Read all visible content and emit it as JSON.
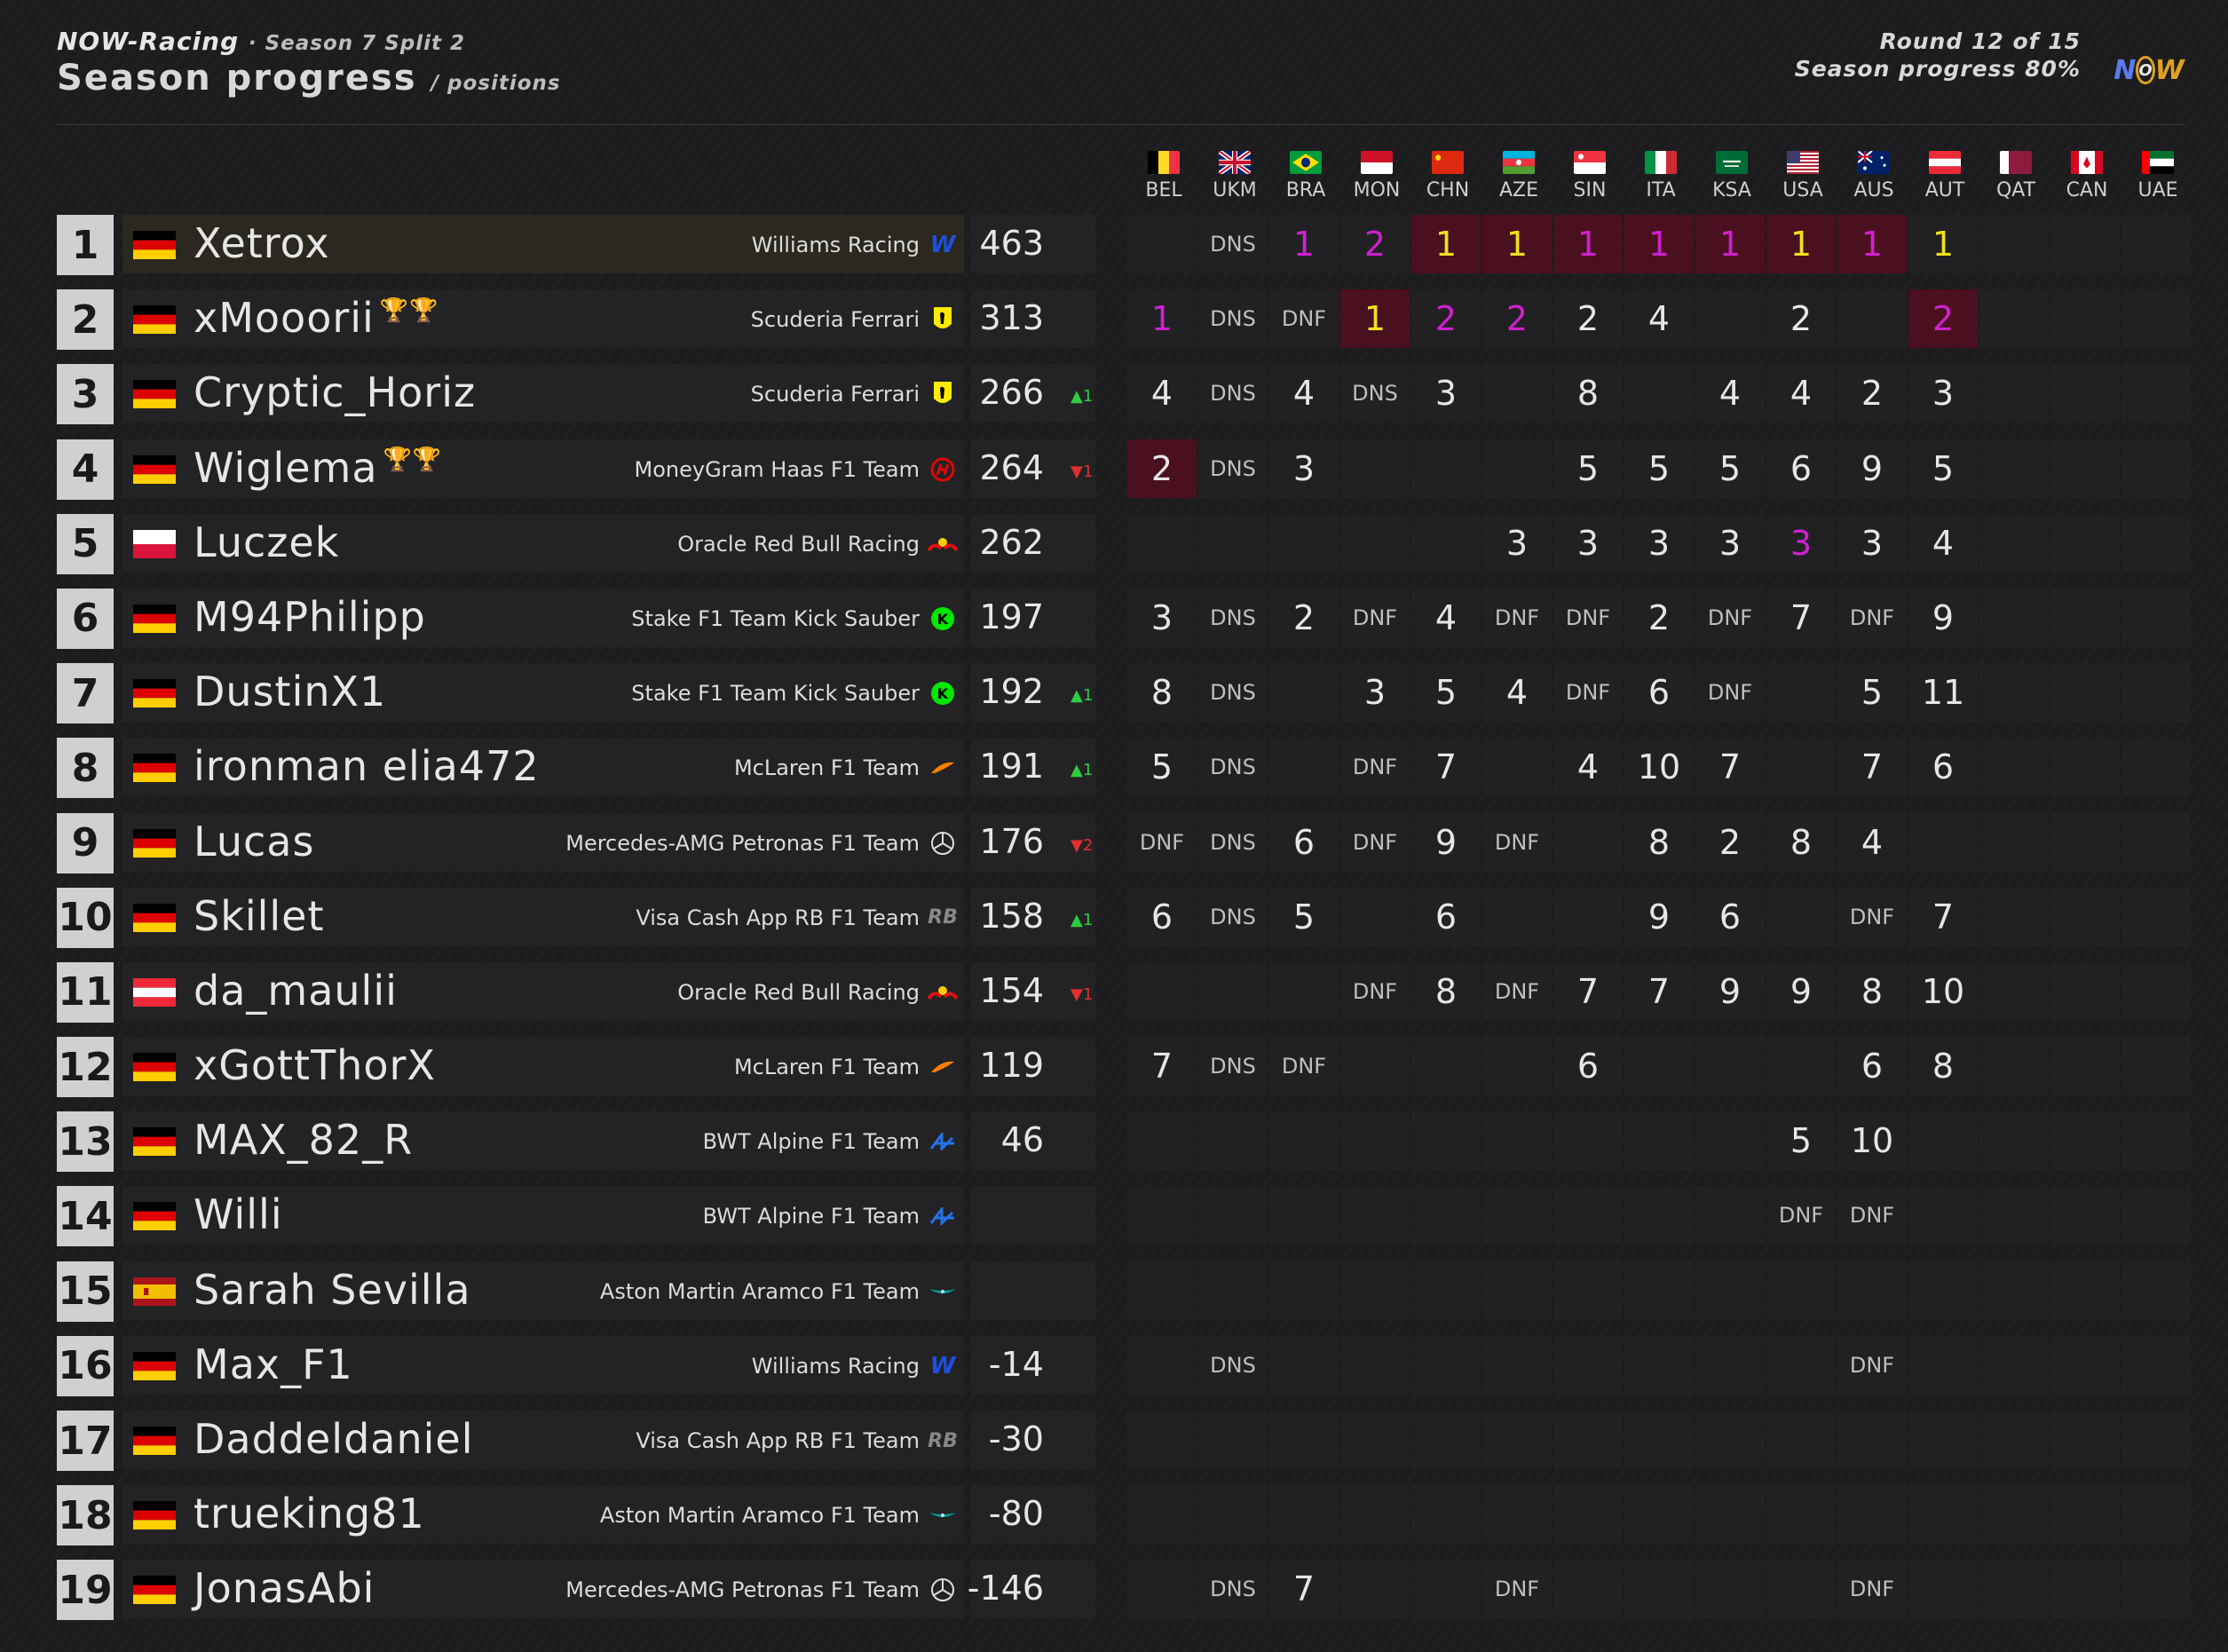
{
  "header": {
    "org": "NOW-Racing",
    "season": "· Season 7 Split 2",
    "title": "Season progress",
    "subtitle": "/ positions",
    "round": "Round 12 of 15",
    "progress": "Season progress 80%",
    "logo_letters": [
      "N",
      "O",
      "W"
    ]
  },
  "races": [
    {
      "code": "BEL",
      "flag": "be"
    },
    {
      "code": "UKM",
      "flag": "gb"
    },
    {
      "code": "BRA",
      "flag": "br"
    },
    {
      "code": "MON",
      "flag": "mc"
    },
    {
      "code": "CHN",
      "flag": "cn"
    },
    {
      "code": "AZE",
      "flag": "az"
    },
    {
      "code": "SIN",
      "flag": "sg"
    },
    {
      "code": "ITA",
      "flag": "it"
    },
    {
      "code": "KSA",
      "flag": "sa"
    },
    {
      "code": "USA",
      "flag": "us"
    },
    {
      "code": "AUS",
      "flag": "au"
    },
    {
      "code": "AUT",
      "flag": "at"
    },
    {
      "code": "QAT",
      "flag": "qa"
    },
    {
      "code": "CAN",
      "flag": "ca"
    },
    {
      "code": "UAE",
      "flag": "ae"
    }
  ],
  "colors": {
    "fastest_lap": "#d020d0",
    "leader_gold": "#f0e020",
    "win_background": "#4a1020",
    "position_up": "#2ecc40",
    "position_down": "#e03030",
    "trophy": "#e0b020"
  },
  "standings": [
    {
      "pos": "1",
      "nat": "de",
      "name": "Xetrox",
      "trophies": "",
      "team": "Williams Racing",
      "team_icon": "williams-logo-icon",
      "points": "463",
      "delta": "",
      "delta_dir": "",
      "results": [
        {
          "v": ""
        },
        {
          "v": "DNS"
        },
        {
          "v": "1",
          "c": "purple"
        },
        {
          "v": "2",
          "c": "purple"
        },
        {
          "v": "1",
          "c": "yellow",
          "win": true
        },
        {
          "v": "1",
          "c": "yellow",
          "win": true
        },
        {
          "v": "1",
          "c": "purple",
          "win": true
        },
        {
          "v": "1",
          "c": "purple",
          "win": true
        },
        {
          "v": "1",
          "c": "purple",
          "win": true
        },
        {
          "v": "1",
          "c": "yellow",
          "win": true
        },
        {
          "v": "1",
          "c": "purple",
          "win": true
        },
        {
          "v": "1",
          "c": "yellow"
        },
        {
          "v": ""
        },
        {
          "v": ""
        },
        {
          "v": ""
        }
      ]
    },
    {
      "pos": "2",
      "nat": "de",
      "name": "xMooorii",
      "trophies": "🏆🏆",
      "team": "Scuderia Ferrari",
      "team_icon": "ferrari-logo-icon",
      "points": "313",
      "delta": "",
      "delta_dir": "",
      "results": [
        {
          "v": "1",
          "c": "purple"
        },
        {
          "v": "DNS"
        },
        {
          "v": "DNF"
        },
        {
          "v": "1",
          "c": "yellow",
          "win": true
        },
        {
          "v": "2",
          "c": "purple"
        },
        {
          "v": "2",
          "c": "purple"
        },
        {
          "v": "2"
        },
        {
          "v": "4"
        },
        {
          "v": ""
        },
        {
          "v": "2"
        },
        {
          "v": ""
        },
        {
          "v": "2",
          "c": "purple",
          "win": true
        },
        {
          "v": ""
        },
        {
          "v": ""
        },
        {
          "v": ""
        }
      ]
    },
    {
      "pos": "3",
      "nat": "de",
      "name": "Cryptic_Horiz",
      "trophies": "",
      "team": "Scuderia Ferrari",
      "team_icon": "ferrari-logo-icon",
      "points": "266",
      "delta": "^1",
      "delta_dir": "up",
      "results": [
        {
          "v": "4"
        },
        {
          "v": "DNS"
        },
        {
          "v": "4"
        },
        {
          "v": "DNS"
        },
        {
          "v": "3"
        },
        {
          "v": ""
        },
        {
          "v": "8"
        },
        {
          "v": ""
        },
        {
          "v": "4"
        },
        {
          "v": "4"
        },
        {
          "v": "2"
        },
        {
          "v": "3"
        },
        {
          "v": ""
        },
        {
          "v": ""
        },
        {
          "v": ""
        }
      ]
    },
    {
      "pos": "4",
      "nat": "de",
      "name": "Wiglema",
      "trophies": "🏆🏆",
      "team": "MoneyGram Haas F1 Team",
      "team_icon": "haas-logo-icon",
      "points": "264",
      "delta": "v1",
      "delta_dir": "down",
      "results": [
        {
          "v": "2",
          "win": true
        },
        {
          "v": "DNS"
        },
        {
          "v": "3"
        },
        {
          "v": ""
        },
        {
          "v": ""
        },
        {
          "v": ""
        },
        {
          "v": "5"
        },
        {
          "v": "5"
        },
        {
          "v": "5"
        },
        {
          "v": "6"
        },
        {
          "v": "9"
        },
        {
          "v": "5"
        },
        {
          "v": ""
        },
        {
          "v": ""
        },
        {
          "v": ""
        }
      ]
    },
    {
      "pos": "5",
      "nat": "pl",
      "name": "Luczek",
      "trophies": "",
      "team": "Oracle Red Bull Racing",
      "team_icon": "redbull-logo-icon",
      "points": "262",
      "delta": "",
      "delta_dir": "",
      "results": [
        {
          "v": ""
        },
        {
          "v": ""
        },
        {
          "v": ""
        },
        {
          "v": ""
        },
        {
          "v": ""
        },
        {
          "v": "3"
        },
        {
          "v": "3"
        },
        {
          "v": "3"
        },
        {
          "v": "3"
        },
        {
          "v": "3",
          "c": "purple"
        },
        {
          "v": "3"
        },
        {
          "v": "4"
        },
        {
          "v": ""
        },
        {
          "v": ""
        },
        {
          "v": ""
        }
      ]
    },
    {
      "pos": "6",
      "nat": "de",
      "name": "M94Philipp",
      "trophies": "",
      "team": "Stake F1 Team Kick Sauber",
      "team_icon": "sauber-logo-icon",
      "points": "197",
      "delta": "",
      "delta_dir": "",
      "results": [
        {
          "v": "3"
        },
        {
          "v": "DNS"
        },
        {
          "v": "2"
        },
        {
          "v": "DNF"
        },
        {
          "v": "4"
        },
        {
          "v": "DNF"
        },
        {
          "v": "DNF"
        },
        {
          "v": "2"
        },
        {
          "v": "DNF"
        },
        {
          "v": "7"
        },
        {
          "v": "DNF"
        },
        {
          "v": "9"
        },
        {
          "v": ""
        },
        {
          "v": ""
        },
        {
          "v": ""
        }
      ]
    },
    {
      "pos": "7",
      "nat": "de",
      "name": "DustinX1",
      "trophies": "",
      "team": "Stake F1 Team Kick Sauber",
      "team_icon": "sauber-logo-icon",
      "points": "192",
      "delta": "^1",
      "delta_dir": "up",
      "results": [
        {
          "v": "8"
        },
        {
          "v": "DNS"
        },
        {
          "v": ""
        },
        {
          "v": "3"
        },
        {
          "v": "5"
        },
        {
          "v": "4"
        },
        {
          "v": "DNF"
        },
        {
          "v": "6"
        },
        {
          "v": "DNF"
        },
        {
          "v": ""
        },
        {
          "v": "5"
        },
        {
          "v": "11"
        },
        {
          "v": ""
        },
        {
          "v": ""
        },
        {
          "v": ""
        }
      ]
    },
    {
      "pos": "8",
      "nat": "de",
      "name": "ironman elia472",
      "trophies": "",
      "team": "McLaren F1 Team",
      "team_icon": "mclaren-logo-icon",
      "points": "191",
      "delta": "^1",
      "delta_dir": "up",
      "results": [
        {
          "v": "5"
        },
        {
          "v": "DNS"
        },
        {
          "v": ""
        },
        {
          "v": "DNF"
        },
        {
          "v": "7"
        },
        {
          "v": ""
        },
        {
          "v": "4"
        },
        {
          "v": "10"
        },
        {
          "v": "7"
        },
        {
          "v": ""
        },
        {
          "v": "7"
        },
        {
          "v": "6"
        },
        {
          "v": ""
        },
        {
          "v": ""
        },
        {
          "v": ""
        }
      ]
    },
    {
      "pos": "9",
      "nat": "de",
      "name": "Lucas",
      "trophies": "",
      "team": "Mercedes-AMG Petronas F1 Team",
      "team_icon": "mercedes-logo-icon",
      "points": "176",
      "delta": "v2",
      "delta_dir": "down",
      "results": [
        {
          "v": "DNF"
        },
        {
          "v": "DNS"
        },
        {
          "v": "6"
        },
        {
          "v": "DNF"
        },
        {
          "v": "9"
        },
        {
          "v": "DNF"
        },
        {
          "v": ""
        },
        {
          "v": "8"
        },
        {
          "v": "2"
        },
        {
          "v": "8"
        },
        {
          "v": "4"
        },
        {
          "v": ""
        },
        {
          "v": ""
        },
        {
          "v": ""
        },
        {
          "v": ""
        }
      ]
    },
    {
      "pos": "10",
      "nat": "de",
      "name": "Skillet",
      "trophies": "",
      "team": "Visa Cash App RB F1 Team",
      "team_icon": "rb-logo-icon",
      "points": "158",
      "delta": "^1",
      "delta_dir": "up",
      "results": [
        {
          "v": "6"
        },
        {
          "v": "DNS"
        },
        {
          "v": "5"
        },
        {
          "v": ""
        },
        {
          "v": "6"
        },
        {
          "v": ""
        },
        {
          "v": ""
        },
        {
          "v": "9"
        },
        {
          "v": "6"
        },
        {
          "v": ""
        },
        {
          "v": "DNF"
        },
        {
          "v": "7"
        },
        {
          "v": ""
        },
        {
          "v": ""
        },
        {
          "v": ""
        }
      ]
    },
    {
      "pos": "11",
      "nat": "at",
      "name": "da_maulii",
      "trophies": "",
      "team": "Oracle Red Bull Racing",
      "team_icon": "redbull-logo-icon",
      "points": "154",
      "delta": "v1",
      "delta_dir": "down",
      "results": [
        {
          "v": ""
        },
        {
          "v": ""
        },
        {
          "v": ""
        },
        {
          "v": "DNF"
        },
        {
          "v": "8"
        },
        {
          "v": "DNF"
        },
        {
          "v": "7"
        },
        {
          "v": "7"
        },
        {
          "v": "9"
        },
        {
          "v": "9"
        },
        {
          "v": "8"
        },
        {
          "v": "10"
        },
        {
          "v": ""
        },
        {
          "v": ""
        },
        {
          "v": ""
        }
      ]
    },
    {
      "pos": "12",
      "nat": "de",
      "name": "xGottThorX",
      "trophies": "",
      "team": "McLaren F1 Team",
      "team_icon": "mclaren-logo-icon",
      "points": "119",
      "delta": "",
      "delta_dir": "",
      "results": [
        {
          "v": "7"
        },
        {
          "v": "DNS"
        },
        {
          "v": "DNF"
        },
        {
          "v": ""
        },
        {
          "v": ""
        },
        {
          "v": ""
        },
        {
          "v": "6"
        },
        {
          "v": ""
        },
        {
          "v": ""
        },
        {
          "v": ""
        },
        {
          "v": "6"
        },
        {
          "v": "8"
        },
        {
          "v": ""
        },
        {
          "v": ""
        },
        {
          "v": ""
        }
      ]
    },
    {
      "pos": "13",
      "nat": "de",
      "name": "MAX_82_R",
      "trophies": "",
      "team": "BWT Alpine F1 Team",
      "team_icon": "alpine-logo-icon",
      "points": "46",
      "delta": "",
      "delta_dir": "",
      "results": [
        {
          "v": ""
        },
        {
          "v": ""
        },
        {
          "v": ""
        },
        {
          "v": ""
        },
        {
          "v": ""
        },
        {
          "v": ""
        },
        {
          "v": ""
        },
        {
          "v": ""
        },
        {
          "v": ""
        },
        {
          "v": "5"
        },
        {
          "v": "10"
        },
        {
          "v": ""
        },
        {
          "v": ""
        },
        {
          "v": ""
        },
        {
          "v": ""
        }
      ]
    },
    {
      "pos": "14",
      "nat": "de",
      "name": "Willi",
      "trophies": "",
      "team": "BWT Alpine F1 Team",
      "team_icon": "alpine-logo-icon",
      "points": "",
      "delta": "",
      "delta_dir": "",
      "results": [
        {
          "v": ""
        },
        {
          "v": ""
        },
        {
          "v": ""
        },
        {
          "v": ""
        },
        {
          "v": ""
        },
        {
          "v": ""
        },
        {
          "v": ""
        },
        {
          "v": ""
        },
        {
          "v": ""
        },
        {
          "v": "DNF"
        },
        {
          "v": "DNF"
        },
        {
          "v": ""
        },
        {
          "v": ""
        },
        {
          "v": ""
        },
        {
          "v": ""
        }
      ]
    },
    {
      "pos": "15",
      "nat": "es",
      "name": "Sarah Sevilla",
      "trophies": "",
      "team": "Aston Martin Aramco F1 Team",
      "team_icon": "astonmartin-logo-icon",
      "points": "",
      "delta": "",
      "delta_dir": "",
      "results": [
        {
          "v": ""
        },
        {
          "v": ""
        },
        {
          "v": ""
        },
        {
          "v": ""
        },
        {
          "v": ""
        },
        {
          "v": ""
        },
        {
          "v": ""
        },
        {
          "v": ""
        },
        {
          "v": ""
        },
        {
          "v": ""
        },
        {
          "v": ""
        },
        {
          "v": ""
        },
        {
          "v": ""
        },
        {
          "v": ""
        },
        {
          "v": ""
        }
      ]
    },
    {
      "pos": "16",
      "nat": "de",
      "name": "Max_F1",
      "trophies": "",
      "team": "Williams Racing",
      "team_icon": "williams-logo-icon",
      "points": "-14",
      "delta": "",
      "delta_dir": "",
      "results": [
        {
          "v": ""
        },
        {
          "v": "DNS"
        },
        {
          "v": ""
        },
        {
          "v": ""
        },
        {
          "v": ""
        },
        {
          "v": ""
        },
        {
          "v": ""
        },
        {
          "v": ""
        },
        {
          "v": ""
        },
        {
          "v": ""
        },
        {
          "v": "DNF"
        },
        {
          "v": ""
        },
        {
          "v": ""
        },
        {
          "v": ""
        },
        {
          "v": ""
        }
      ]
    },
    {
      "pos": "17",
      "nat": "de",
      "name": "Daddeldaniel",
      "trophies": "",
      "team": "Visa Cash App RB F1 Team",
      "team_icon": "rb-logo-icon",
      "points": "-30",
      "delta": "",
      "delta_dir": "",
      "results": [
        {
          "v": ""
        },
        {
          "v": ""
        },
        {
          "v": ""
        },
        {
          "v": ""
        },
        {
          "v": ""
        },
        {
          "v": ""
        },
        {
          "v": ""
        },
        {
          "v": ""
        },
        {
          "v": ""
        },
        {
          "v": ""
        },
        {
          "v": ""
        },
        {
          "v": ""
        },
        {
          "v": ""
        },
        {
          "v": ""
        },
        {
          "v": ""
        }
      ]
    },
    {
      "pos": "18",
      "nat": "de",
      "name": "trueking81",
      "trophies": "",
      "team": "Aston Martin Aramco F1 Team",
      "team_icon": "astonmartin-logo-icon",
      "points": "-80",
      "delta": "",
      "delta_dir": "",
      "results": [
        {
          "v": ""
        },
        {
          "v": ""
        },
        {
          "v": ""
        },
        {
          "v": ""
        },
        {
          "v": ""
        },
        {
          "v": ""
        },
        {
          "v": ""
        },
        {
          "v": ""
        },
        {
          "v": ""
        },
        {
          "v": ""
        },
        {
          "v": ""
        },
        {
          "v": ""
        },
        {
          "v": ""
        },
        {
          "v": ""
        },
        {
          "v": ""
        }
      ]
    },
    {
      "pos": "19",
      "nat": "de",
      "name": "JonasAbi",
      "trophies": "",
      "team": "Mercedes-AMG Petronas F1 Team",
      "team_icon": "mercedes-logo-icon",
      "points": "-146",
      "delta": "",
      "delta_dir": "",
      "results": [
        {
          "v": ""
        },
        {
          "v": "DNS"
        },
        {
          "v": "7"
        },
        {
          "v": ""
        },
        {
          "v": ""
        },
        {
          "v": "DNF"
        },
        {
          "v": ""
        },
        {
          "v": ""
        },
        {
          "v": ""
        },
        {
          "v": ""
        },
        {
          "v": "DNF"
        },
        {
          "v": ""
        },
        {
          "v": ""
        },
        {
          "v": ""
        },
        {
          "v": ""
        }
      ]
    }
  ]
}
